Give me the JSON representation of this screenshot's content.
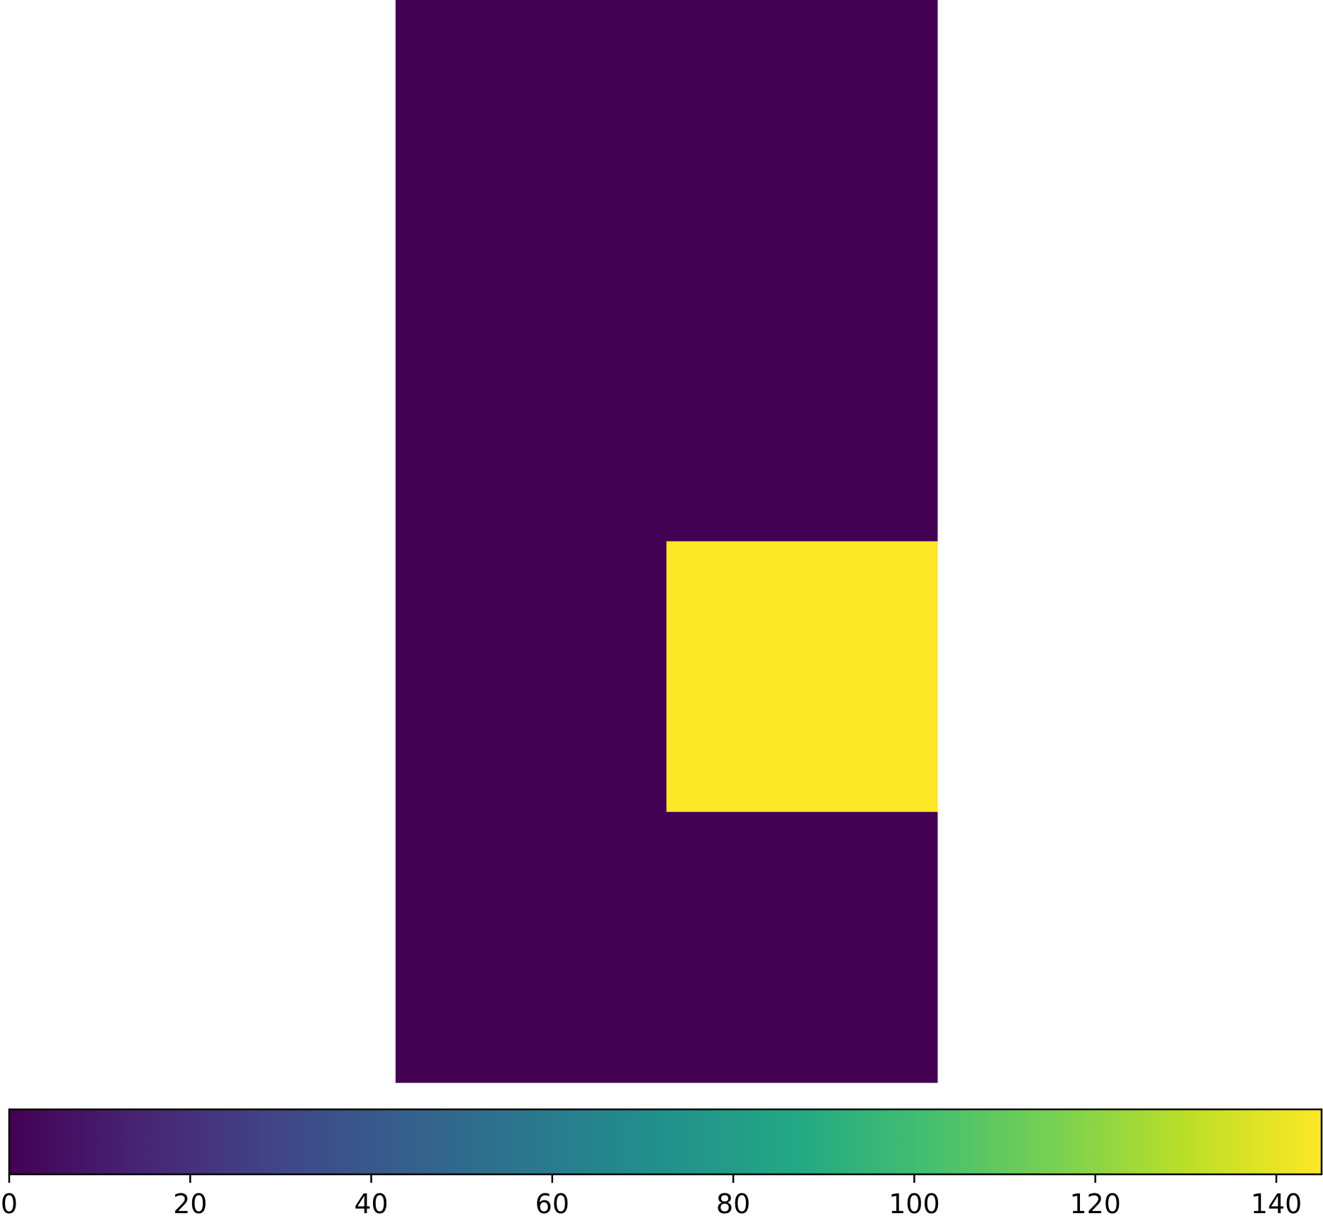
{
  "chart_data": {
    "type": "heatmap",
    "title": "",
    "xlabel": "",
    "ylabel": "",
    "axes_visible": false,
    "grid": false,
    "rows": 4,
    "cols": 2,
    "values": [
      [
        0,
        0
      ],
      [
        0,
        0
      ],
      [
        0,
        145
      ],
      [
        0,
        0
      ]
    ],
    "colormap": "viridis",
    "colorbar": {
      "orientation": "horizontal",
      "position": "bottom",
      "vmin": 0,
      "vmax": 145,
      "ticks": [
        0,
        20,
        40,
        60,
        80,
        100,
        120,
        140
      ],
      "tick_labels": [
        "0",
        "20",
        "40",
        "60",
        "80",
        "100",
        "120",
        "140"
      ]
    }
  }
}
